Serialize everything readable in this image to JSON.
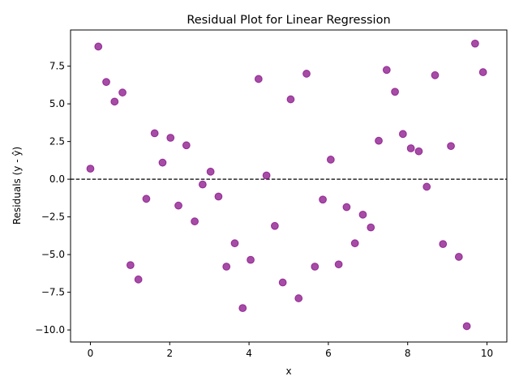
{
  "chart_data": {
    "type": "scatter",
    "title": "Residual Plot for Linear Regression",
    "xlabel": "x",
    "ylabel": "Residuals (y - ŷ)",
    "xlim": [
      -0.5,
      10.5
    ],
    "ylim": [
      -10.8,
      9.9
    ],
    "xticks": [
      0,
      2,
      4,
      6,
      8,
      10
    ],
    "xtick_labels": [
      "0",
      "2",
      "4",
      "6",
      "8",
      "10"
    ],
    "yticks": [
      7.5,
      5.0,
      2.5,
      0.0,
      -2.5,
      -5.0,
      -7.5,
      -10.0
    ],
    "ytick_labels": [
      "7.5",
      "5.0",
      "2.5",
      "0.0",
      "−2.5",
      "−5.0",
      "−7.5",
      "−10.0"
    ],
    "grid": false,
    "reference_line": {
      "y": 0,
      "style": "dashed",
      "color": "#000000"
    },
    "marker_color": "#800080",
    "series": [
      {
        "x": [
          0.0,
          0.2,
          0.4,
          0.61,
          0.81,
          1.01,
          1.21,
          1.41,
          1.62,
          1.82,
          2.02,
          2.22,
          2.42,
          2.63,
          2.83,
          3.03,
          3.23,
          3.43,
          3.64,
          3.84,
          4.04,
          4.24,
          4.44,
          4.65,
          4.85,
          5.05,
          5.25,
          5.45,
          5.66,
          5.86,
          6.06,
          6.26,
          6.46,
          6.67,
          6.87,
          7.07,
          7.27,
          7.47,
          7.68,
          7.88,
          8.08,
          8.28,
          8.48,
          8.69,
          8.89,
          9.09,
          9.29,
          9.49,
          9.7,
          9.9
        ],
        "y": [
          0.7,
          8.8,
          6.45,
          5.15,
          5.75,
          -5.7,
          -6.65,
          -1.3,
          3.05,
          1.1,
          2.75,
          -1.75,
          2.25,
          -2.8,
          -0.35,
          0.5,
          -1.15,
          -5.8,
          -4.25,
          -8.55,
          -5.35,
          6.65,
          0.25,
          -3.1,
          -6.85,
          5.3,
          -7.9,
          7.0,
          -5.8,
          -1.35,
          1.3,
          -5.65,
          -1.85,
          -4.25,
          -2.35,
          -3.2,
          2.55,
          7.25,
          5.8,
          3.0,
          2.05,
          1.85,
          -0.5,
          6.9,
          -4.3,
          2.2,
          -5.15,
          -9.75,
          9.0,
          7.1
        ]
      }
    ]
  }
}
